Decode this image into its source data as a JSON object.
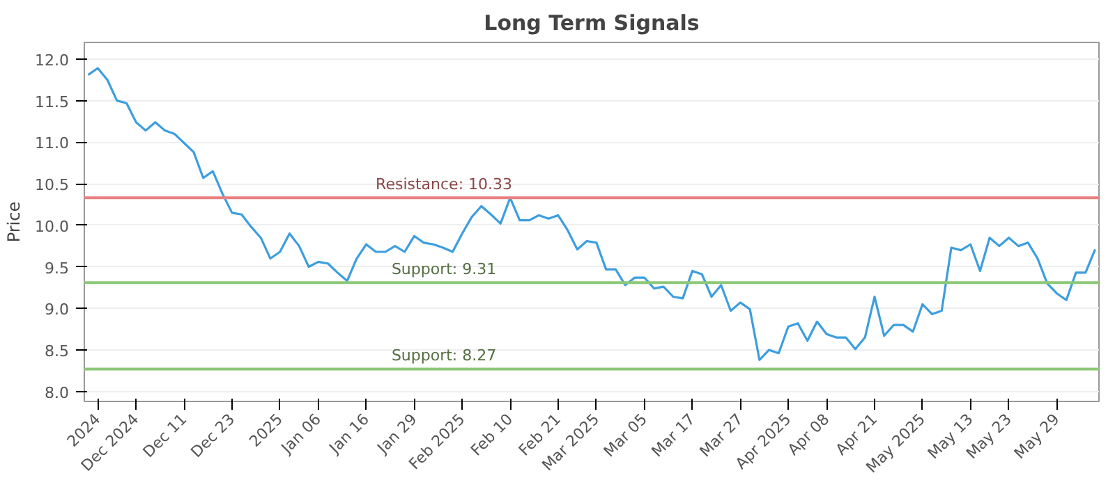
{
  "chart_data": {
    "type": "line",
    "title": "Long Term Signals",
    "ylabel": "Price",
    "categories": [
      null,
      "2024",
      null,
      null,
      null,
      "Dec 2024",
      null,
      null,
      null,
      null,
      "Dec 11",
      null,
      null,
      null,
      null,
      "Dec 23",
      null,
      null,
      null,
      null,
      "2025",
      null,
      null,
      null,
      "Jan 06",
      null,
      null,
      null,
      null,
      "Jan 16",
      null,
      null,
      null,
      null,
      "Jan 29",
      null,
      null,
      null,
      null,
      "Feb 2025",
      null,
      null,
      null,
      null,
      "Feb 10",
      null,
      null,
      null,
      null,
      "Feb 21",
      null,
      null,
      null,
      "Mar 2025",
      null,
      null,
      null,
      null,
      "Mar 05",
      null,
      null,
      null,
      null,
      "Mar 17",
      null,
      null,
      null,
      null,
      "Mar 27",
      null,
      null,
      null,
      null,
      "Apr 2025",
      null,
      null,
      null,
      "Apr 08",
      null,
      null,
      null,
      null,
      "Apr 21",
      null,
      null,
      null,
      null,
      "May 2025",
      null,
      null,
      null,
      null,
      "May 13",
      null,
      null,
      null,
      "May 23",
      null,
      null,
      null,
      null,
      "May 29",
      null,
      null,
      null,
      null
    ],
    "series": [
      {
        "color": "#3d9ee0",
        "values": [
          11.81,
          11.89,
          11.75,
          11.5,
          11.47,
          11.24,
          11.14,
          11.24,
          11.14,
          11.1,
          10.99,
          10.88,
          10.57,
          10.65,
          10.38,
          10.15,
          10.13,
          9.98,
          9.85,
          9.6,
          9.68,
          9.9,
          9.75,
          9.5,
          9.56,
          9.54,
          9.43,
          9.33,
          9.6,
          9.77,
          9.68,
          9.68,
          9.75,
          9.68,
          9.87,
          9.79,
          9.77,
          9.73,
          9.68,
          9.9,
          10.1,
          10.23,
          10.13,
          10.02,
          10.33,
          10.06,
          10.06,
          10.12,
          10.08,
          10.12,
          9.94,
          9.71,
          9.81,
          9.79,
          9.47,
          9.47,
          9.28,
          9.37,
          9.37,
          9.24,
          9.26,
          9.14,
          9.12,
          9.45,
          9.41,
          9.14,
          9.28,
          8.97,
          9.07,
          8.99,
          8.38,
          8.5,
          8.46,
          8.78,
          8.82,
          8.61,
          8.84,
          8.69,
          8.65,
          8.65,
          8.51,
          8.65,
          9.14,
          8.67,
          8.8,
          8.8,
          8.72,
          9.05,
          8.93,
          8.97,
          9.73,
          9.7,
          9.77,
          9.45,
          9.85,
          9.75,
          9.85,
          9.75,
          9.79,
          9.6,
          9.3,
          9.18,
          9.1,
          9.43,
          9.43,
          9.71
        ]
      }
    ],
    "ylim": [
      7.88,
      12.2
    ],
    "yticks": [
      {
        "value": 8,
        "label": "8.0"
      },
      8.5,
      {
        "value": 9,
        "label": "9.0"
      },
      9.5,
      {
        "value": 10,
        "label": "10.0"
      },
      10.5,
      {
        "value": 11,
        "label": "11.0"
      },
      11.5,
      {
        "value": 12,
        "label": "12.0"
      }
    ],
    "ref_lines": [
      {
        "axis": "y",
        "value": 10.33,
        "label": "Resistance: 10.33",
        "color": "#e88080"
      },
      {
        "axis": "y",
        "value": 9.31,
        "label": "Support: 9.31",
        "color": "#8cc878"
      },
      {
        "axis": "y",
        "value": 8.27,
        "label": "Support: 8.27",
        "color": "#8cc878"
      }
    ],
    "grid": "y",
    "line_style": "solid",
    "marker": "none"
  }
}
